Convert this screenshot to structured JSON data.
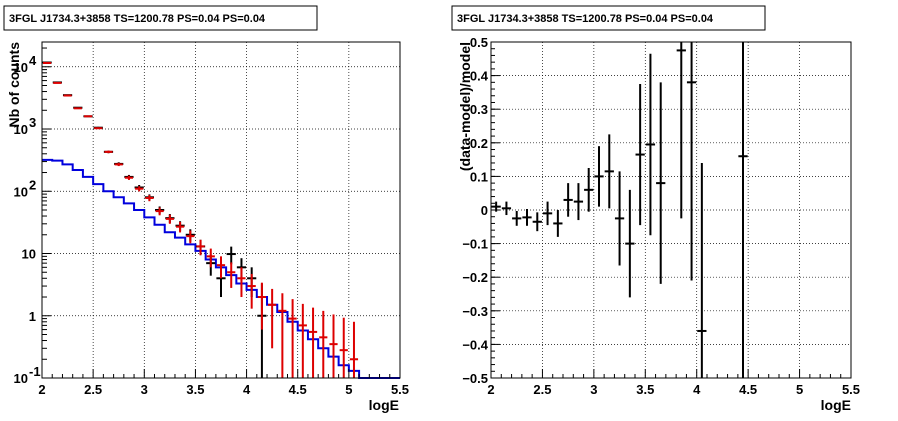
{
  "chart_data": [
    {
      "type": "line",
      "title": "3FGL J1734.3+3858 TS=1200.78 PS=0.04 PS=0.04",
      "xlabel": "logE",
      "ylabel": "Nb of counts",
      "xlim": [
        2,
        5.5
      ],
      "ylim": [
        0.1,
        25000
      ],
      "yscale": "log",
      "grid": true,
      "x_ticks": [
        "2",
        "2.5",
        "3",
        "3.5",
        "4",
        "4.5",
        "5",
        "5.5"
      ],
      "y_ticks": [
        {
          "value": 0.1,
          "label": "10",
          "exp": "-1"
        },
        {
          "value": 1,
          "label": "1",
          "exp": ""
        },
        {
          "value": 10,
          "label": "10",
          "exp": ""
        },
        {
          "value": 100,
          "label": "10",
          "exp": "2"
        },
        {
          "value": 1000,
          "label": "10",
          "exp": "3"
        },
        {
          "value": 10000,
          "label": "10",
          "exp": "4"
        }
      ],
      "series": [
        {
          "kind": "points",
          "color": "#000000",
          "x": [
            2.05,
            2.15,
            2.25,
            2.35,
            2.45,
            2.55,
            2.65,
            2.75,
            2.85,
            2.95,
            3.05,
            3.15,
            3.25,
            3.35,
            3.45,
            3.55,
            3.65,
            3.75,
            3.85,
            3.95,
            4.05,
            4.15
          ],
          "values": [
            11700,
            5600,
            3500,
            2200,
            1600,
            1050,
            430,
            275,
            170,
            115,
            80,
            50,
            37,
            28,
            20,
            13,
            7,
            4,
            9.8,
            6,
            4,
            1
          ],
          "err_low": [
            150,
            80,
            60,
            47,
            40,
            32,
            21,
            17,
            13,
            11,
            9,
            7,
            6,
            5,
            4.5,
            3.6,
            2.6,
            2,
            3.1,
            2.4,
            2,
            0.9
          ],
          "err_high": [
            150,
            80,
            60,
            47,
            40,
            32,
            21,
            17,
            13,
            11,
            9,
            7,
            6,
            5,
            4.5,
            3.6,
            2.6,
            2,
            3.1,
            2.4,
            2,
            2.3
          ]
        },
        {
          "kind": "points",
          "color": "#dd0000",
          "x": [
            2.05,
            2.15,
            2.25,
            2.35,
            2.45,
            2.55,
            2.65,
            2.75,
            2.85,
            2.95,
            3.05,
            3.15,
            3.25,
            3.35,
            3.45,
            3.55,
            3.65,
            3.75,
            3.85,
            3.95,
            4.05,
            4.15,
            4.25,
            4.35,
            4.45,
            4.55,
            4.65,
            4.75,
            4.85,
            4.95,
            5.05
          ],
          "values": [
            11500,
            5500,
            3450,
            2150,
            1600,
            1030,
            430,
            270,
            165,
            110,
            78,
            48,
            36,
            27,
            19,
            13,
            9,
            6.5,
            5,
            4,
            3,
            2,
            1.5,
            1.2,
            0.9,
            0.7,
            0.55,
            0.45,
            0.35,
            0.28,
            0.2
          ],
          "err_low": [
            110,
            75,
            59,
            46,
            40,
            32,
            21,
            16,
            13,
            10.5,
            8.8,
            6.9,
            6,
            5.2,
            4.4,
            3.6,
            3,
            2.5,
            2.2,
            2,
            1.7,
            1.4,
            1.2,
            1.1,
            0.9,
            0.7,
            0.55,
            0.45,
            0.35,
            0.28,
            0.2
          ],
          "err_high": [
            110,
            75,
            59,
            46,
            40,
            32,
            21,
            16,
            13,
            10.5,
            8.8,
            6.9,
            6,
            5.2,
            4.4,
            3.6,
            3,
            2.5,
            2.2,
            2,
            1.7,
            1.4,
            1.2,
            1.1,
            0.95,
            0.85,
            0.8,
            0.75,
            0.7,
            0.65,
            0.6
          ]
        },
        {
          "kind": "step",
          "color": "#0000dd",
          "edges": [
            2.0,
            2.1,
            2.2,
            2.3,
            2.4,
            2.5,
            2.6,
            2.7,
            2.8,
            2.9,
            3.0,
            3.1,
            3.2,
            3.3,
            3.4,
            3.5,
            3.6,
            3.7,
            3.8,
            3.9,
            4.0,
            4.1,
            4.2,
            4.3,
            4.4,
            4.5,
            4.6,
            4.7,
            4.8,
            4.9,
            5.0,
            5.1,
            5.5
          ],
          "values": [
            320,
            310,
            270,
            220,
            170,
            130,
            100,
            80,
            64,
            50,
            38,
            29,
            22,
            18,
            14,
            11,
            8,
            6,
            4.5,
            3.3,
            2.6,
            2.0,
            1.5,
            1.15,
            0.8,
            0.58,
            0.42,
            0.3,
            0.22,
            0.16,
            0.13,
            0.1
          ]
        }
      ]
    },
    {
      "type": "scatter",
      "title": "3FGL J1734.3+3858 TS=1200.78 PS=0.04 PS=0.04",
      "xlabel": "logE",
      "ylabel": "(data-model)/model",
      "xlim": [
        2,
        5.5
      ],
      "ylim": [
        -0.5,
        0.5
      ],
      "grid": true,
      "x_ticks": [
        "2",
        "2.5",
        "3",
        "3.5",
        "4",
        "4.5",
        "5",
        "5.5"
      ],
      "y_ticks": [
        "−0.5",
        "−0.4",
        "−0.3",
        "−0.2",
        "−0.1",
        "0",
        "0.1",
        "0.2",
        "0.3",
        "0.4",
        "0.5"
      ],
      "series": [
        {
          "color": "#000000",
          "x": [
            2.05,
            2.15,
            2.25,
            2.35,
            2.45,
            2.55,
            2.65,
            2.75,
            2.85,
            2.95,
            3.05,
            3.15,
            3.25,
            3.35,
            3.45,
            3.55,
            3.65,
            3.85,
            3.95,
            4.05,
            4.45
          ],
          "values": [
            0.01,
            0.005,
            -0.025,
            -0.022,
            -0.035,
            -0.01,
            -0.04,
            0.03,
            0.025,
            0.06,
            0.1,
            0.115,
            -0.025,
            -0.1,
            0.165,
            0.195,
            0.08,
            0.475,
            0.38,
            -0.36,
            0.16
          ],
          "err": [
            0.015,
            0.02,
            0.022,
            0.025,
            0.028,
            0.035,
            0.04,
            0.05,
            0.055,
            0.065,
            0.09,
            0.11,
            0.14,
            0.16,
            0.21,
            0.27,
            0.3,
            0.5,
            0.59,
            0.5,
            0.8
          ]
        }
      ]
    }
  ]
}
